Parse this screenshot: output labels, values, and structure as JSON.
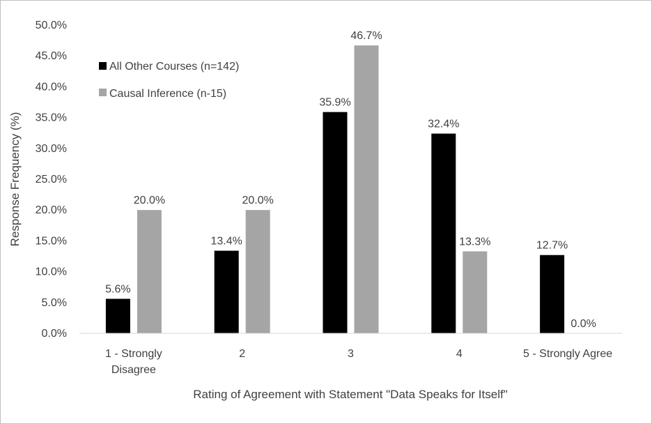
{
  "chart_data": {
    "type": "bar",
    "title": "",
    "xlabel": "Rating of Agreement with Statement \"Data Speaks for Itself\"",
    "ylabel": "Response Frequency (%)",
    "ylim": [
      0,
      50
    ],
    "ytick_step": 5,
    "ytick_labels": [
      "0.0%",
      "5.0%",
      "10.0%",
      "15.0%",
      "20.0%",
      "25.0%",
      "30.0%",
      "35.0%",
      "40.0%",
      "45.0%",
      "50.0%"
    ],
    "categories": [
      [
        "1 - Strongly",
        "Disagree"
      ],
      [
        "2"
      ],
      [
        "3"
      ],
      [
        "4"
      ],
      [
        "5 - Strongly Agree"
      ]
    ],
    "series": [
      {
        "name": "All Other Courses (n=142)",
        "color": "#000000",
        "values": [
          5.6,
          13.4,
          35.9,
          32.4,
          12.7
        ],
        "labels": [
          "5.6%",
          "13.4%",
          "35.9%",
          "32.4%",
          "12.7%"
        ]
      },
      {
        "name": "Causal Inference (n-15)",
        "color": "#a5a5a5",
        "values": [
          20.0,
          20.0,
          46.7,
          13.3,
          0.0
        ],
        "labels": [
          "20.0%",
          "20.0%",
          "46.7%",
          "13.3%",
          "0.0%"
        ]
      }
    ],
    "grid": false,
    "legend_position": "top-left"
  }
}
